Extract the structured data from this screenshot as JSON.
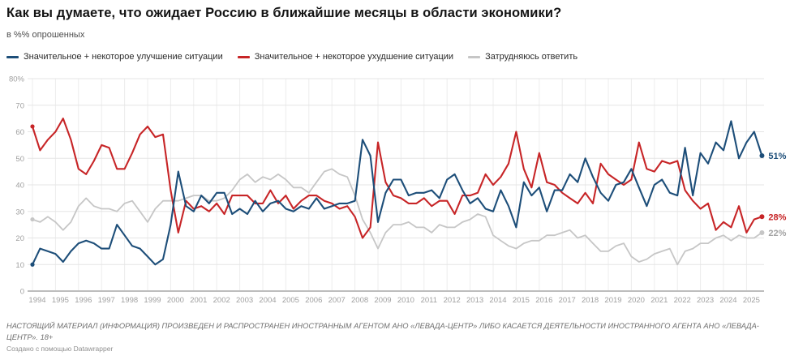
{
  "header": {
    "title": "Как вы думаете, что ожидает Россию в ближайшие месяцы в области экономики?",
    "subtitle": "в %% опрошенных"
  },
  "footer": {
    "disclaimer": "НАСТОЯЩИЙ МАТЕРИАЛ (ИНФОРМАЦИЯ) ПРОИЗВЕДЕН И РАСПРОСТРАНЕН ИНОСТРАННЫМ АГЕНТОМ АНО «ЛЕВАДА-ЦЕНТР» ЛИБО КАСАЕТСЯ ДЕЯТЕЛЬНОСТИ ИНОСТРАННОГО АГЕНТА АНО «ЛЕВАДА-ЦЕНТР». 18+",
    "credit": "Создано с помощью Datawrapper"
  },
  "chart_data": {
    "type": "line",
    "title": "Как вы думаете, что ожидает Россию в ближайшие месяцы в области экономики?",
    "subtitle": "в %% опрошенных",
    "xlabel": "",
    "ylabel": "в %% опрошенных",
    "ylim": [
      0,
      80
    ],
    "grid": true,
    "legend_position": "top",
    "y_ticks": [
      0,
      10,
      20,
      30,
      40,
      50,
      60,
      70,
      80
    ],
    "y_tick_labels": [
      "0",
      "10",
      "20",
      "30",
      "40",
      "50",
      "60",
      "70",
      "80%"
    ],
    "x_ticks": [
      1994,
      1995,
      1996,
      1997,
      1998,
      1999,
      2000,
      2001,
      2002,
      2003,
      2004,
      2005,
      2006,
      2007,
      2008,
      2009,
      2010,
      2011,
      2012,
      2013,
      2014,
      2015,
      2016,
      2017,
      2018,
      2019,
      2020,
      2021,
      2022,
      2023,
      2024,
      2025
    ],
    "x": [
      1994,
      1994.33,
      1994.67,
      1995,
      1995.33,
      1995.67,
      1996,
      1996.33,
      1996.67,
      1997,
      1997.33,
      1997.67,
      1998,
      1998.33,
      1998.67,
      1999,
      1999.33,
      1999.67,
      2000,
      2000.33,
      2000.67,
      2001,
      2001.33,
      2001.67,
      2002,
      2002.33,
      2002.67,
      2003,
      2003.33,
      2003.67,
      2004,
      2004.33,
      2004.67,
      2005,
      2005.33,
      2005.67,
      2006,
      2006.33,
      2006.67,
      2007,
      2007.33,
      2007.67,
      2008,
      2008.33,
      2008.67,
      2009,
      2009.33,
      2009.67,
      2010,
      2010.33,
      2010.67,
      2011,
      2011.33,
      2011.67,
      2012,
      2012.33,
      2012.67,
      2013,
      2013.33,
      2013.67,
      2014,
      2014.33,
      2014.67,
      2015,
      2015.33,
      2015.67,
      2016,
      2016.33,
      2016.67,
      2017,
      2017.33,
      2017.67,
      2018,
      2018.33,
      2018.67,
      2019,
      2019.33,
      2019.67,
      2020,
      2020.33,
      2020.67,
      2021,
      2021.33,
      2021.67,
      2022,
      2022.33,
      2022.67,
      2023,
      2023.33,
      2023.67,
      2024,
      2024.33,
      2024.67,
      2025,
      2025.33,
      2025.67
    ],
    "series": [
      {
        "name": "Значительное + некоторое улучшение ситуации",
        "color": "#1d4e79",
        "label_color": "#1d4e79",
        "end_label": "51%",
        "values": [
          10,
          16,
          15,
          14,
          11,
          15,
          18,
          19,
          18,
          16,
          16,
          25,
          21,
          17,
          16,
          13,
          10,
          12,
          25,
          45,
          32,
          30,
          36,
          33,
          37,
          37,
          29,
          31,
          29,
          34,
          30,
          33,
          34,
          31,
          30,
          32,
          31,
          35,
          31,
          32,
          33,
          33,
          34,
          57,
          51,
          26,
          37,
          42,
          42,
          36,
          37,
          37,
          38,
          35,
          42,
          44,
          38,
          33,
          35,
          31,
          30,
          38,
          32,
          24,
          41,
          36,
          39,
          30,
          38,
          38,
          44,
          41,
          50,
          43,
          37,
          34,
          40,
          41,
          46,
          39,
          32,
          40,
          42,
          37,
          36,
          54,
          36,
          52,
          48,
          56,
          53,
          64,
          50,
          56,
          60,
          51
        ]
      },
      {
        "name": "Значительное + некоторое ухудшение ситуации",
        "color": "#c72527",
        "label_color": "#c72527",
        "end_label": "28%",
        "values": [
          62,
          53,
          57,
          60,
          65,
          57,
          46,
          44,
          49,
          55,
          54,
          46,
          46,
          52,
          59,
          62,
          58,
          59,
          38,
          22,
          34,
          31,
          32,
          30,
          33,
          29,
          36,
          36,
          36,
          33,
          33,
          38,
          33,
          36,
          31,
          34,
          36,
          36,
          34,
          33,
          31,
          32,
          28,
          20,
          24,
          56,
          41,
          36,
          35,
          33,
          33,
          35,
          32,
          34,
          34,
          29,
          36,
          36,
          37,
          44,
          40,
          43,
          48,
          60,
          46,
          39,
          52,
          41,
          40,
          37,
          35,
          33,
          37,
          33,
          48,
          44,
          42,
          40,
          42,
          56,
          46,
          45,
          49,
          48,
          49,
          38,
          34,
          31,
          33,
          23,
          26,
          24,
          32,
          22,
          27,
          28
        ]
      },
      {
        "name": "Затрудняюсь ответить",
        "color": "#c6c6c6",
        "label_color": "#a3a3a3",
        "end_label": "22%",
        "values": [
          27,
          26,
          28,
          26,
          23,
          26,
          32,
          35,
          32,
          31,
          31,
          30,
          33,
          34,
          30,
          26,
          31,
          34,
          34,
          34,
          35,
          36,
          36,
          34,
          34,
          35,
          38,
          42,
          44,
          41,
          43,
          42,
          44,
          42,
          39,
          39,
          37,
          41,
          45,
          46,
          44,
          43,
          36,
          27,
          22,
          16,
          22,
          25,
          25,
          26,
          24,
          24,
          22,
          25,
          24,
          24,
          26,
          27,
          29,
          28,
          21,
          19,
          17,
          16,
          18,
          19,
          19,
          21,
          21,
          22,
          23,
          20,
          21,
          18,
          15,
          15,
          17,
          18,
          13,
          11,
          12,
          14,
          15,
          16,
          10,
          15,
          16,
          18,
          18,
          20,
          21,
          19,
          21,
          20,
          20,
          22
        ]
      }
    ]
  }
}
